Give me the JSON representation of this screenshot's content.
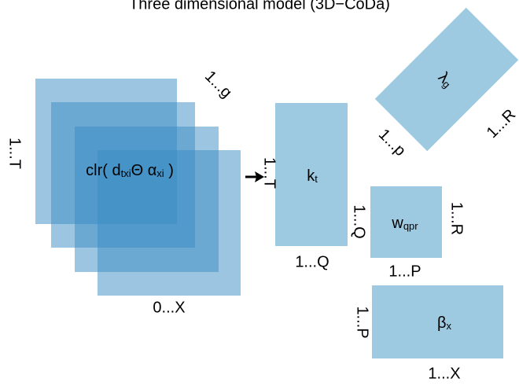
{
  "title": "Three dimensional model (3D−CoDa)",
  "tensor": {
    "label": [
      "clr( d",
      "txi",
      "Θ α",
      "xi",
      " )"
    ],
    "dim_left": "1...T",
    "dim_depth": "1...g",
    "dim_bottom": "0...X"
  },
  "k": {
    "label": [
      "k",
      "t"
    ],
    "dim_left": "1...T",
    "dim_bottom": "1...Q"
  },
  "w": {
    "label": [
      "w",
      "qpr"
    ],
    "dim_left": "1...Q",
    "dim_right": "1...R",
    "dim_bottom": "1...P"
  },
  "lambda": {
    "label": [
      "λ",
      "g"
    ],
    "dim_left": "1...p",
    "dim_right": "1...R"
  },
  "beta": {
    "label": [
      "β",
      "x"
    ],
    "dim_left": "1...P",
    "dim_bottom": "1...X"
  }
}
